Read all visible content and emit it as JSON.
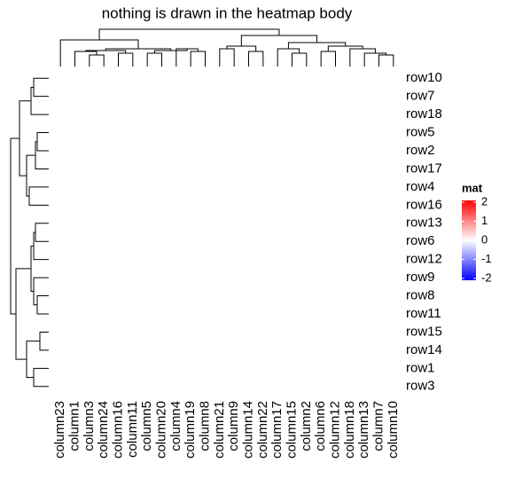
{
  "chart_data": {
    "type": "heatmap",
    "title": "nothing is drawn in the heatmap body",
    "rows": [
      "row10",
      "row7",
      "row18",
      "row5",
      "row2",
      "row17",
      "row4",
      "row16",
      "row13",
      "row6",
      "row12",
      "row9",
      "row8",
      "row11",
      "row15",
      "row14",
      "row1",
      "row3"
    ],
    "columns": [
      "column23",
      "column1",
      "column3",
      "column24",
      "column16",
      "column11",
      "column5",
      "column20",
      "column4",
      "column19",
      "column8",
      "column21",
      "column9",
      "column14",
      "column22",
      "column17",
      "column15",
      "column2",
      "column6",
      "column12",
      "column18",
      "column13",
      "column7",
      "column10"
    ],
    "legend": {
      "title": "mat",
      "lim": [
        -2,
        2
      ],
      "ticks": [
        2,
        1,
        0,
        -1,
        -2
      ],
      "colors": [
        "#0000ff",
        "#ffffff",
        "#ff0000"
      ]
    }
  }
}
